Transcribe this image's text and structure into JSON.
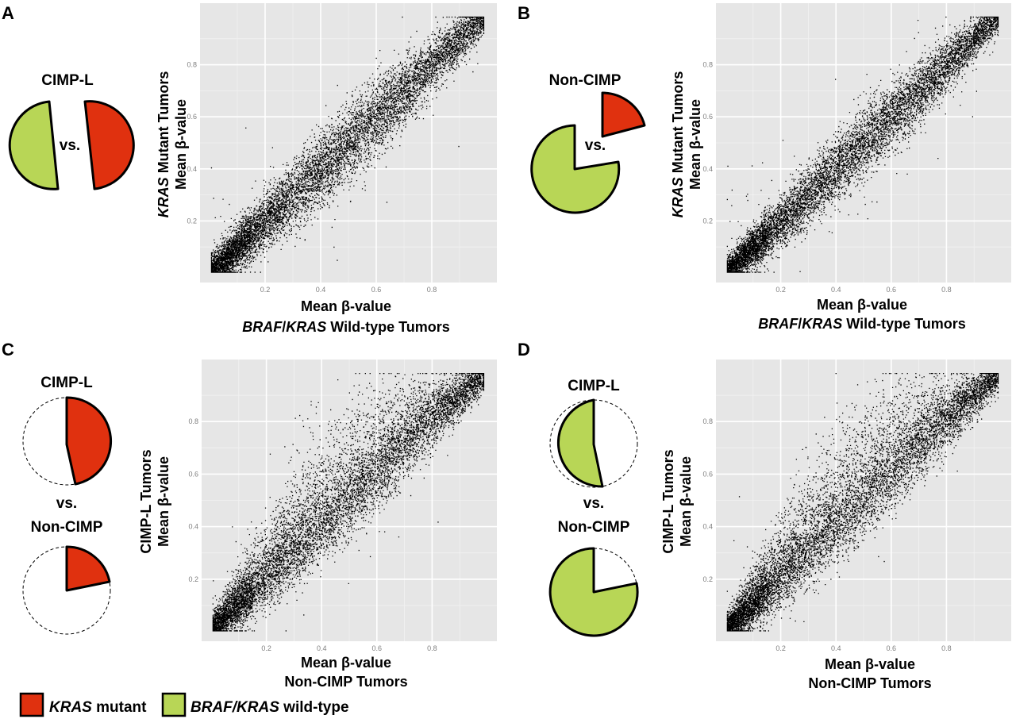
{
  "colors": {
    "kras_mutant": "#e0310f",
    "braf_kras_wildtype": "#b8d656",
    "plot_background": "#e6e6e6",
    "points": "#000000"
  },
  "legend": {
    "items": [
      {
        "italic": "KRAS",
        "rest": " mutant",
        "color": "#e0310f"
      },
      {
        "italic": "BRAF/KRAS",
        "rest": " wild-type",
        "color": "#b8d656"
      }
    ]
  },
  "panels": [
    {
      "letter": "A",
      "pie_titles": [
        "CIMP-L"
      ],
      "vs": "vs.",
      "y_title_line1_italic": "KRAS",
      "y_title_line1_rest": " Mutant Tumors",
      "y_title_line2": "Mean β-value",
      "x_title_line1": "Mean β-value",
      "x_title_line2_italic": "BRAF",
      "x_title_line2_sep": "/",
      "x_title_line2_italic2": "KRAS",
      "x_title_line2_rest": " Wild-type Tumors"
    },
    {
      "letter": "B",
      "pie_titles": [
        "Non-CIMP"
      ],
      "vs": "vs.",
      "y_title_line1_italic": "KRAS",
      "y_title_line1_rest": " Mutant Tumors",
      "y_title_line2": "Mean β-value",
      "x_title_line1": "Mean β-value",
      "x_title_line2_italic": "BRAF",
      "x_title_line2_sep": "/",
      "x_title_line2_italic2": "KRAS",
      "x_title_line2_rest": " Wild-type Tumors"
    },
    {
      "letter": "C",
      "pie_titles": [
        "CIMP-L",
        "Non-CIMP"
      ],
      "vs": "vs.",
      "y_title_line1_italic": "",
      "y_title_line1_rest": "CIMP-L Tumors",
      "y_title_line2": "Mean β-value",
      "x_title_line1": "Mean β-value",
      "x_title_line2_italic": "",
      "x_title_line2_sep": "",
      "x_title_line2_italic2": "",
      "x_title_line2_rest": "Non-CIMP Tumors"
    },
    {
      "letter": "D",
      "pie_titles": [
        "CIMP-L",
        "Non-CIMP"
      ],
      "vs": "vs.",
      "y_title_line1_italic": "",
      "y_title_line1_rest": "CIMP-L Tumors",
      "y_title_line2": "Mean β-value",
      "x_title_line1": "Mean β-value",
      "x_title_line2_italic": "",
      "x_title_line2_sep": "",
      "x_title_line2_italic2": "",
      "x_title_line2_rest": "Non-CIMP Tumors"
    }
  ],
  "chart_data": [
    {
      "panel": "A",
      "type": "scatter",
      "x_ticks": [
        0.2,
        0.4,
        0.6,
        0.8
      ],
      "y_ticks": [
        0.2,
        0.4,
        0.6,
        0.8
      ],
      "x_tick_labels": [
        "0.2",
        "0.4",
        "0.6",
        "0.8"
      ],
      "y_tick_labels": [
        "0.2",
        "0.4",
        "0.6",
        "0.8"
      ],
      "xlim": [
        0,
        1
      ],
      "ylim": [
        0,
        1
      ],
      "relationship": "y ≈ x, tight diagonal cloud",
      "spread": 0.05,
      "n_points_approx": 9000,
      "grid": true
    },
    {
      "panel": "B",
      "type": "scatter",
      "x_ticks": [
        0.2,
        0.4,
        0.6,
        0.8
      ],
      "y_ticks": [
        0.2,
        0.4,
        0.6,
        0.8
      ],
      "x_tick_labels": [
        "0.2",
        "0.4",
        "0.6",
        "0.8"
      ],
      "y_tick_labels": [
        "0.2",
        "0.4",
        "0.6",
        "0.8"
      ],
      "xlim": [
        0,
        1
      ],
      "ylim": [
        0,
        1
      ],
      "relationship": "y ≈ x, tight diagonal cloud",
      "spread": 0.045,
      "n_points_approx": 9000,
      "grid": true
    },
    {
      "panel": "C",
      "type": "scatter",
      "x_ticks": [
        0.2,
        0.4,
        0.6,
        0.8
      ],
      "y_ticks": [
        0.2,
        0.4,
        0.6,
        0.8
      ],
      "x_tick_labels": [
        "0.2",
        "0.4",
        "0.6",
        "0.8"
      ],
      "y_tick_labels": [
        "0.2",
        "0.4",
        "0.6",
        "0.8"
      ],
      "xlim": [
        0,
        1
      ],
      "ylim": [
        0,
        1
      ],
      "relationship": "y ≥ x skew, CIMP-L hypermethylated above diagonal",
      "spread": 0.05,
      "upward_skew": 0.35,
      "n_points_approx": 9000,
      "grid": true
    },
    {
      "panel": "D",
      "type": "scatter",
      "x_ticks": [
        0.2,
        0.4,
        0.6,
        0.8
      ],
      "y_ticks": [
        0.2,
        0.4,
        0.6,
        0.8
      ],
      "x_tick_labels": [
        "0.2",
        "0.4",
        "0.6",
        "0.8"
      ],
      "y_tick_labels": [
        "0.2",
        "0.4",
        "0.6",
        "0.8"
      ],
      "xlim": [
        0,
        1
      ],
      "ylim": [
        0,
        1
      ],
      "relationship": "y ≥ x skew, CIMP-L hypermethylated above diagonal",
      "spread": 0.05,
      "upward_skew": 0.35,
      "n_points_approx": 9000,
      "grid": true
    }
  ]
}
